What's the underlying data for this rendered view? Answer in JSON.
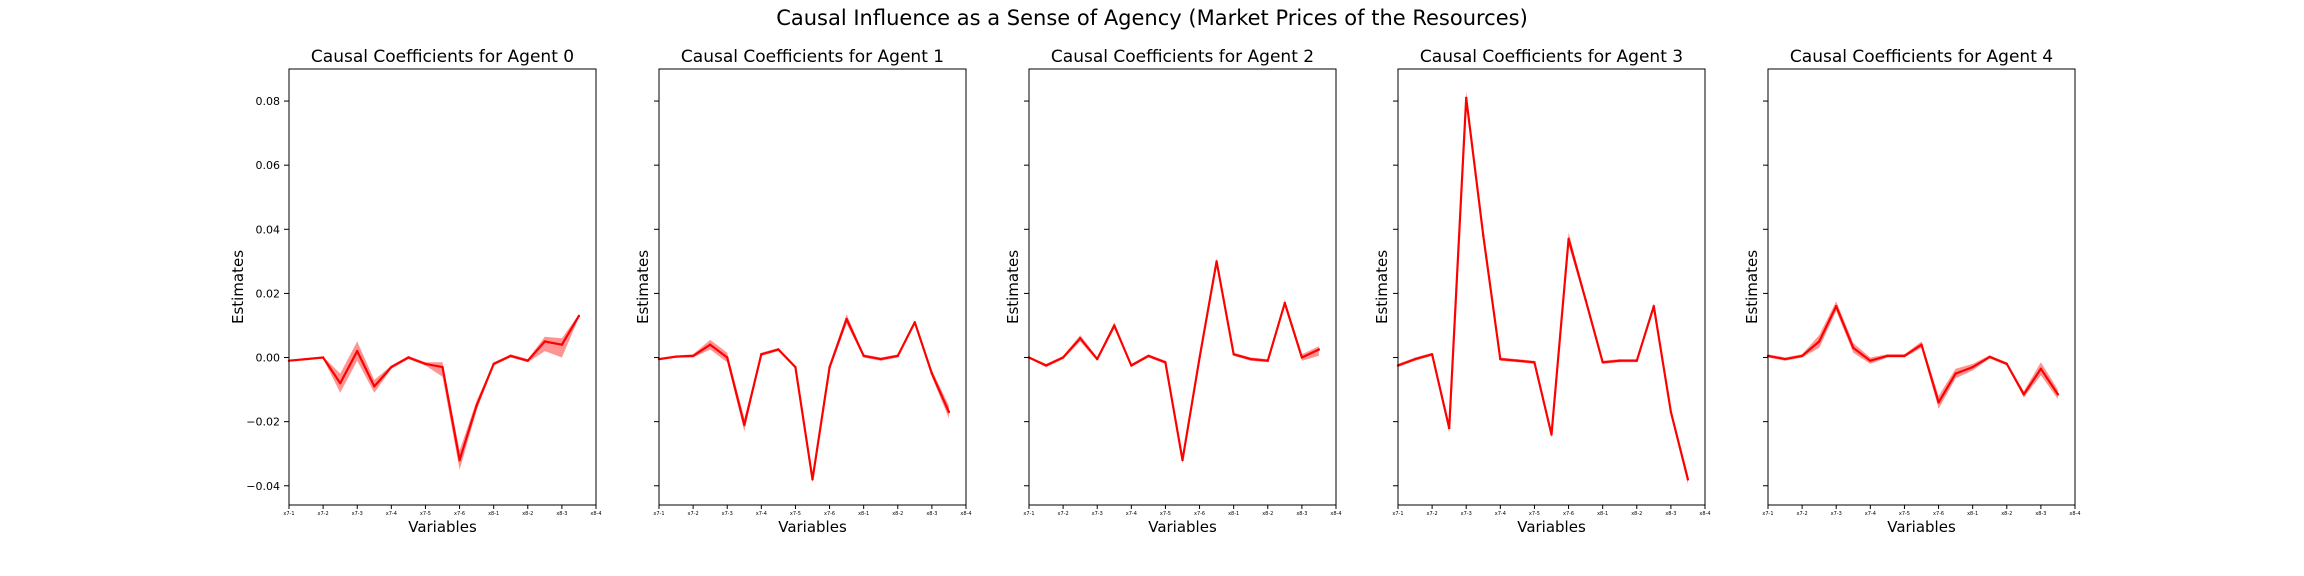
{
  "figure": {
    "suptitle": "Causal Influence as a Sense of Agency (Market Prices of the Resources)"
  },
  "colors": {
    "line": "#ff0000",
    "band": "#ff4d4d",
    "axes": "#000000",
    "background": "#ffffff"
  },
  "chart_data": [
    {
      "type": "line",
      "title": "Causal Coefficients for Agent 0",
      "xlabel": "Variables",
      "ylabel": "Estimates",
      "ylim": [
        -0.046,
        0.09
      ],
      "yticks": [
        -0.04,
        -0.02,
        0.0,
        0.02,
        0.04,
        0.06,
        0.08
      ],
      "ytick_labels": [
        "−0.04",
        "−0.02",
        "0.00",
        "0.02",
        "0.04",
        "0.06",
        "0.08"
      ],
      "x_tick_labels": [
        "x7-1",
        "x7-2",
        "x7-3",
        "x7-4",
        "x7-5",
        "x7-6",
        "x8-1",
        "x8-2",
        "x8-3",
        "x8-4"
      ],
      "x_tick_positions": [
        0,
        2,
        4,
        6,
        8,
        10,
        12,
        14,
        16,
        18
      ],
      "x": [
        0,
        1,
        2,
        3,
        4,
        5,
        6,
        7,
        8,
        9,
        10,
        11,
        12,
        13,
        14,
        15,
        16,
        17,
        18
      ],
      "y": [
        -0.001,
        -0.0005,
        0.0,
        -0.008,
        0.002,
        -0.009,
        -0.003,
        0.0,
        -0.002,
        -0.003,
        -0.032,
        -0.015,
        -0.002,
        0.0005,
        -0.001,
        0.005,
        0.004,
        0.013,
        null
      ],
      "y_lower": [
        -0.0012,
        -0.0007,
        -0.0003,
        -0.011,
        -0.001,
        -0.011,
        -0.0035,
        -0.0005,
        -0.0025,
        -0.006,
        -0.035,
        -0.0165,
        -0.0025,
        0.0,
        -0.0015,
        0.002,
        0.0,
        0.0125,
        null
      ],
      "y_upper": [
        -0.0008,
        -0.0003,
        0.0003,
        -0.005,
        0.005,
        -0.007,
        -0.0025,
        0.0005,
        -0.0015,
        -0.0015,
        -0.029,
        -0.0135,
        -0.0015,
        0.001,
        -0.0005,
        0.0065,
        0.006,
        0.0135,
        null
      ],
      "x_max": 18
    },
    {
      "type": "line",
      "title": "Causal Coefficients for Agent 1",
      "xlabel": "Variables",
      "ylabel": "Estimates",
      "ylim": [
        -0.046,
        0.09
      ],
      "yticks": [
        -0.04,
        -0.02,
        0.0,
        0.02,
        0.04,
        0.06,
        0.08
      ],
      "ytick_labels": [
        "",
        "",
        "",
        "",
        "",
        "",
        ""
      ],
      "x_tick_labels": [
        "x7-1",
        "x7-2",
        "x7-3",
        "x7-4",
        "x7-5",
        "x7-6",
        "x8-1",
        "x8-2",
        "x8-3",
        "x8-4"
      ],
      "x_tick_positions": [
        0,
        2,
        4,
        6,
        8,
        10,
        12,
        14,
        16,
        18
      ],
      "x": [
        0,
        1,
        2,
        3,
        4,
        5,
        6,
        7,
        8,
        9,
        10,
        11,
        12,
        13,
        14,
        15,
        16,
        17,
        18
      ],
      "y": [
        -0.0005,
        0.0003,
        0.0005,
        0.004,
        0.0,
        -0.021,
        0.001,
        0.0025,
        -0.003,
        -0.038,
        -0.003,
        0.012,
        0.0005,
        -0.0005,
        0.0005,
        0.011,
        -0.005,
        -0.017,
        null
      ],
      "y_lower": [
        -0.0008,
        0.0,
        0.0,
        0.0025,
        -0.0015,
        -0.023,
        0.0005,
        0.002,
        -0.0035,
        -0.039,
        -0.004,
        0.0105,
        0.0,
        -0.001,
        0.0,
        0.0105,
        -0.006,
        -0.019,
        null
      ],
      "y_upper": [
        -0.0002,
        0.0006,
        0.001,
        0.0055,
        0.0015,
        -0.019,
        0.0015,
        0.003,
        -0.0025,
        -0.037,
        -0.002,
        0.0135,
        0.001,
        0.0,
        0.001,
        0.0115,
        -0.004,
        -0.015,
        null
      ],
      "x_max": 18
    },
    {
      "type": "line",
      "title": "Causal Coefficients for Agent 2",
      "xlabel": "Variables",
      "ylabel": "Estimates",
      "ylim": [
        -0.046,
        0.09
      ],
      "yticks": [
        -0.04,
        -0.02,
        0.0,
        0.02,
        0.04,
        0.06,
        0.08
      ],
      "ytick_labels": [
        "",
        "",
        "",
        "",
        "",
        "",
        ""
      ],
      "x_tick_labels": [
        "x7-1",
        "x7-2",
        "x7-3",
        "x7-4",
        "x7-5",
        "x7-6",
        "x8-1",
        "x8-2",
        "x8-3",
        "x8-4"
      ],
      "x_tick_positions": [
        0,
        2,
        4,
        6,
        8,
        10,
        12,
        14,
        16,
        18
      ],
      "x": [
        0,
        1,
        2,
        3,
        4,
        5,
        6,
        7,
        8,
        9,
        10,
        11,
        12,
        13,
        14,
        15,
        16,
        17,
        18
      ],
      "y": [
        0.0,
        -0.0025,
        0.0,
        0.006,
        -0.0005,
        0.01,
        -0.0025,
        0.0005,
        -0.0015,
        -0.032,
        0.0,
        0.03,
        0.001,
        -0.0005,
        -0.001,
        0.017,
        0.0,
        0.0025,
        null
      ],
      "y_lower": [
        -0.0003,
        -0.003,
        -0.0005,
        0.005,
        -0.001,
        0.009,
        -0.003,
        0.0,
        -0.002,
        -0.033,
        -0.0005,
        0.029,
        0.0005,
        -0.001,
        -0.0015,
        0.016,
        -0.001,
        0.0005,
        null
      ],
      "y_upper": [
        0.0003,
        -0.002,
        0.0005,
        0.007,
        0.0,
        0.011,
        -0.002,
        0.001,
        -0.001,
        -0.031,
        0.0005,
        0.031,
        0.0015,
        0.0,
        -0.0005,
        0.018,
        0.001,
        0.0035,
        null
      ],
      "x_max": 18
    },
    {
      "type": "line",
      "title": "Causal Coefficients for Agent 3",
      "xlabel": "Variables",
      "ylabel": "Estimates",
      "ylim": [
        -0.046,
        0.09
      ],
      "yticks": [
        -0.04,
        -0.02,
        0.0,
        0.02,
        0.04,
        0.06,
        0.08
      ],
      "ytick_labels": [
        "",
        "",
        "",
        "",
        "",
        "",
        ""
      ],
      "x_tick_labels": [
        "x7-1",
        "x7-2",
        "x7-3",
        "x7-4",
        "x7-5",
        "x7-6",
        "x8-1",
        "x8-2",
        "x8-3",
        "x8-4"
      ],
      "x_tick_positions": [
        0,
        2,
        4,
        6,
        8,
        10,
        12,
        14,
        16,
        18
      ],
      "x": [
        0,
        1,
        2,
        3,
        4,
        5,
        6,
        7,
        8,
        9,
        10,
        11,
        12,
        13,
        14,
        15,
        16,
        17,
        18
      ],
      "y": [
        -0.0025,
        -0.0005,
        0.001,
        -0.022,
        0.081,
        0.038,
        -0.0005,
        -0.001,
        -0.0015,
        -0.024,
        0.037,
        0.018,
        -0.0015,
        -0.001,
        -0.001,
        0.016,
        -0.017,
        -0.038,
        null
      ],
      "y_lower": [
        -0.003,
        -0.001,
        0.0005,
        -0.0235,
        0.079,
        0.037,
        -0.001,
        -0.0015,
        -0.002,
        -0.025,
        0.035,
        0.017,
        -0.002,
        -0.0015,
        -0.0015,
        0.015,
        -0.018,
        -0.0395,
        null
      ],
      "y_upper": [
        -0.002,
        0.0,
        0.0015,
        -0.0205,
        0.083,
        0.039,
        0.0,
        -0.0005,
        -0.001,
        -0.023,
        0.039,
        0.019,
        -0.001,
        -0.0005,
        -0.0005,
        0.017,
        -0.016,
        -0.0365,
        null
      ],
      "x_max": 18
    },
    {
      "type": "line",
      "title": "Causal Coefficients for Agent 4",
      "xlabel": "Variables",
      "ylabel": "Estimates",
      "ylim": [
        -0.046,
        0.09
      ],
      "yticks": [
        -0.04,
        -0.02,
        0.0,
        0.02,
        0.04,
        0.06,
        0.08
      ],
      "ytick_labels": [
        "",
        "",
        "",
        "",
        "",
        "",
        ""
      ],
      "x_tick_labels": [
        "x7-1",
        "x7-2",
        "x7-3",
        "x7-4",
        "x7-5",
        "x7-6",
        "x8-1",
        "x8-2",
        "x8-3",
        "x8-4"
      ],
      "x_tick_positions": [
        0,
        2,
        4,
        6,
        8,
        10,
        12,
        14,
        16,
        18
      ],
      "x": [
        0,
        1,
        2,
        3,
        4,
        5,
        6,
        7,
        8,
        9,
        10,
        11,
        12,
        13,
        14,
        15,
        16,
        17,
        18
      ],
      "y": [
        0.0005,
        -0.0005,
        0.0005,
        0.005,
        0.016,
        0.003,
        -0.001,
        0.0005,
        0.0005,
        0.004,
        -0.014,
        -0.005,
        -0.003,
        0.0002,
        -0.002,
        -0.0115,
        -0.0035,
        -0.0115,
        null
      ],
      "y_lower": [
        0.0,
        -0.001,
        0.0,
        0.003,
        0.0145,
        0.0015,
        -0.002,
        0.0,
        0.0,
        0.003,
        -0.016,
        -0.0065,
        -0.004,
        -0.0003,
        -0.0025,
        -0.0125,
        -0.0055,
        -0.013,
        null
      ],
      "y_upper": [
        0.001,
        0.0,
        0.001,
        0.007,
        0.0175,
        0.0045,
        0.0,
        0.001,
        0.001,
        0.005,
        -0.012,
        -0.0035,
        -0.002,
        0.0007,
        -0.0015,
        -0.0105,
        -0.0015,
        -0.01,
        null
      ],
      "x_max": 18
    }
  ]
}
